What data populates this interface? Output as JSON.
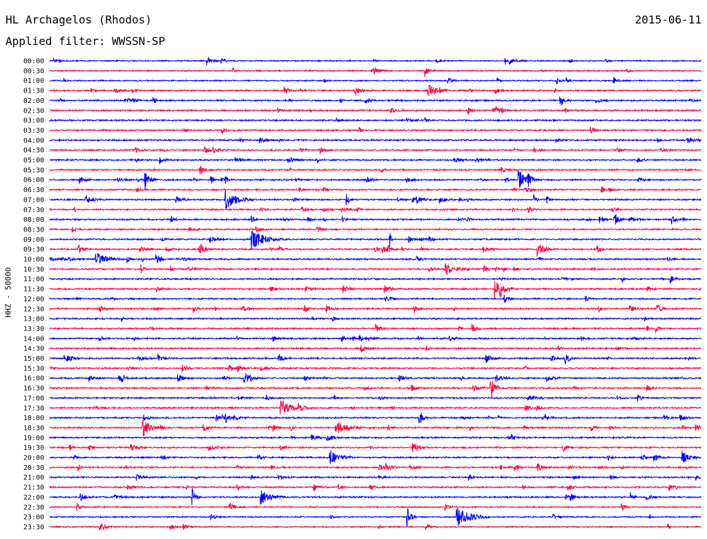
{
  "header": {
    "station": "HL Archagelos (Rhodos)",
    "date": "2015-06-11",
    "filter": "Applied filter: WWSSN-SP"
  },
  "chart_data": {
    "type": "line",
    "title": "HL Archagelos (Rhodos)",
    "date": "2015-06-11",
    "filter": "WWSSN-SP",
    "ylabel": "HHZ - 50000",
    "traces": [
      "00:00",
      "00:30",
      "01:00",
      "01:30",
      "02:00",
      "02:30",
      "03:00",
      "03:30",
      "04:00",
      "04:30",
      "05:00",
      "05:30",
      "06:00",
      "06:30",
      "07:00",
      "07:30",
      "08:00",
      "08:30",
      "09:00",
      "09:30",
      "10:00",
      "10:30",
      "11:00",
      "11:30",
      "12:00",
      "12:30",
      "13:00",
      "13:30",
      "14:00",
      "14:30",
      "15:00",
      "15:30",
      "16:00",
      "16:30",
      "17:00",
      "17:30",
      "18:00",
      "18:30",
      "19:00",
      "19:30",
      "20:00",
      "20:30",
      "21:00",
      "21:30",
      "22:00",
      "22:30",
      "23:00",
      "23:30"
    ],
    "colors": [
      "#0000ff",
      "#ff0040"
    ]
  }
}
